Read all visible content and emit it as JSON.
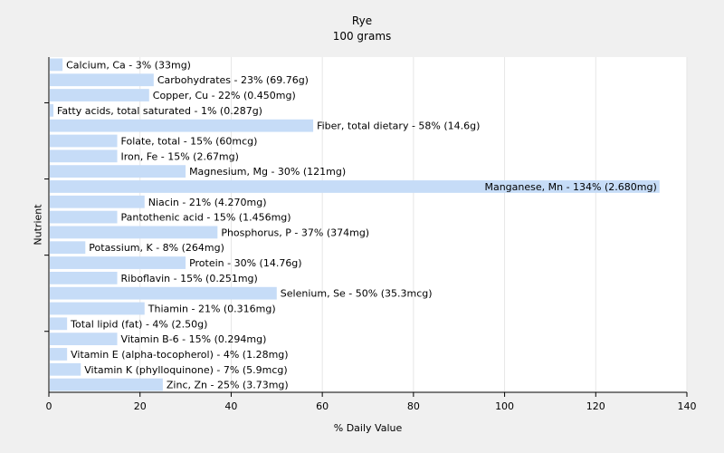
{
  "chart_data": {
    "type": "bar",
    "orientation": "horizontal",
    "title": "Rye",
    "subtitle": "100 grams",
    "xlabel": "% Daily Value",
    "ylabel": "Nutrient",
    "xlim": [
      0,
      140
    ],
    "xticks": [
      0,
      20,
      40,
      60,
      80,
      100,
      120,
      140
    ],
    "grid": true,
    "bar_color": "#c6dcf7",
    "categories": [
      "Calcium, Ca",
      "Carbohydrates",
      "Copper, Cu",
      "Fatty acids, total saturated",
      "Fiber, total dietary",
      "Folate, total",
      "Iron, Fe",
      "Magnesium, Mg",
      "Manganese, Mn",
      "Niacin",
      "Pantothenic acid",
      "Phosphorus, P",
      "Potassium, K",
      "Protein",
      "Riboflavin",
      "Selenium, Se",
      "Thiamin",
      "Total lipid (fat)",
      "Vitamin B-6",
      "Vitamin E (alpha-tocopherol)",
      "Vitamin K (phylloquinone)",
      "Zinc, Zn"
    ],
    "values": [
      3,
      23,
      22,
      1,
      58,
      15,
      15,
      30,
      134,
      21,
      15,
      37,
      8,
      30,
      15,
      50,
      21,
      4,
      15,
      4,
      7,
      25
    ],
    "labels": [
      "Calcium, Ca - 3% (33mg)",
      "Carbohydrates - 23% (69.76g)",
      "Copper, Cu - 22% (0.450mg)",
      "Fatty acids, total saturated - 1% (0.287g)",
      "Fiber, total dietary - 58% (14.6g)",
      "Folate, total - 15% (60mcg)",
      "Iron, Fe - 15% (2.67mg)",
      "Magnesium, Mg - 30% (121mg)",
      "Manganese, Mn - 134% (2.680mg)",
      "Niacin - 21% (4.270mg)",
      "Pantothenic acid - 15% (1.456mg)",
      "Phosphorus, P - 37% (374mg)",
      "Potassium, K - 8% (264mg)",
      "Protein - 30% (14.76g)",
      "Riboflavin - 15% (0.251mg)",
      "Selenium, Se - 50% (35.3mcg)",
      "Thiamin - 21% (0.316mg)",
      "Total lipid (fat) - 4% (2.50g)",
      "Vitamin B-6 - 15% (0.294mg)",
      "Vitamin E (alpha-tocopherol) - 4% (1.28mg)",
      "Vitamin K (phylloquinone) - 7% (5.9mcg)",
      "Zinc, Zn - 25% (3.73mg)"
    ]
  }
}
